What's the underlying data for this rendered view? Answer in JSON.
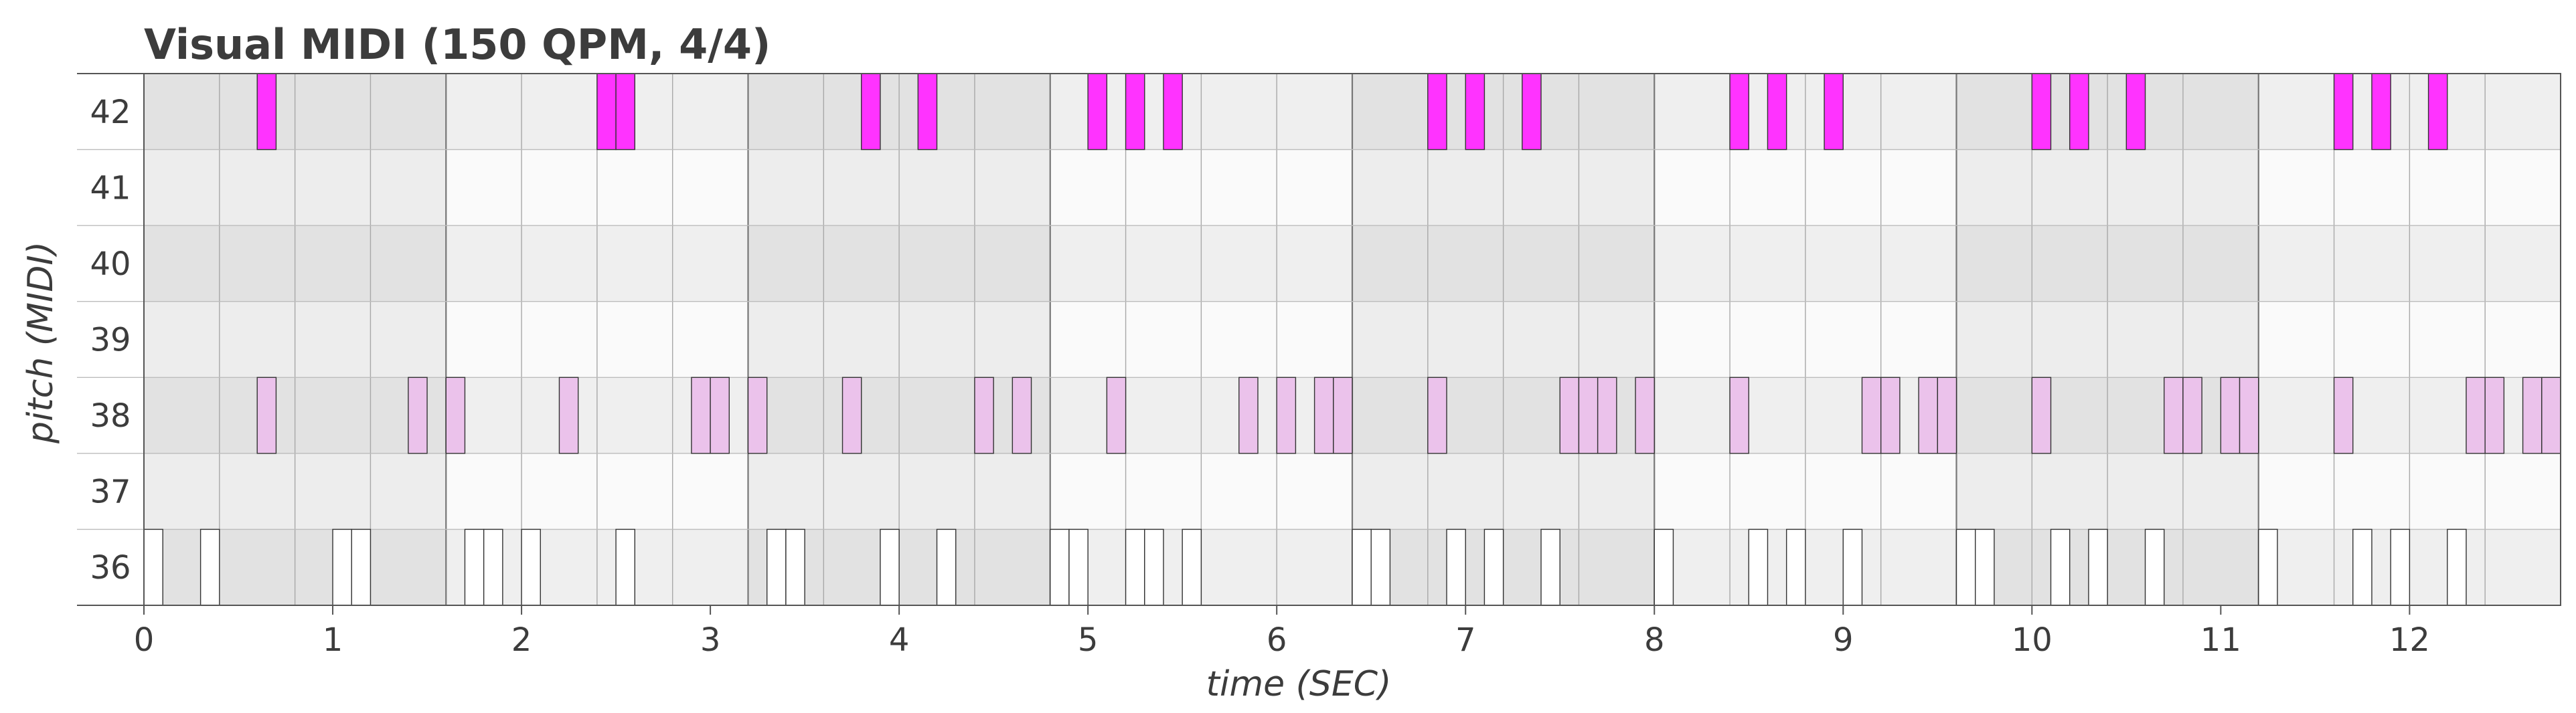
{
  "chart_data": {
    "type": "piano-roll",
    "title": "Visual MIDI (150 QPM, 4/4)",
    "xlabel": "time (SEC)",
    "ylabel": "pitch (MIDI)",
    "xlim": [
      0,
      12.8
    ],
    "ylim": [
      36,
      42
    ],
    "x_ticks": [
      "0",
      "1",
      "2",
      "3",
      "4",
      "5",
      "6",
      "7",
      "8",
      "9",
      "10",
      "11",
      "12"
    ],
    "y_ticks": [
      "42",
      "41",
      "40",
      "39",
      "38",
      "37",
      "36"
    ],
    "beat_seconds": 0.4,
    "bar_seconds": 1.6,
    "note_duration": 0.1,
    "colors": {
      "pitch_42": "#ff33ff",
      "pitch_38": "#ebc2eb",
      "pitch_36": "#ffffff",
      "note_border": "#333333",
      "background_light": "#fafafa",
      "background_dark_bar": "#e2e2e2",
      "background_mid_bar": "#ececec"
    },
    "notes": {
      "pitch_42": [
        0.6,
        2.4,
        2.5,
        3.8,
        4.1,
        5.0,
        5.2,
        5.4,
        6.8,
        7.0,
        7.3,
        8.4,
        8.6,
        8.9,
        10.0,
        10.2,
        10.5,
        11.6,
        11.8,
        12.1
      ],
      "pitch_38": [
        0.6,
        1.4,
        1.6,
        2.2,
        2.9,
        3.0,
        3.2,
        3.7,
        4.4,
        4.6,
        5.1,
        5.8,
        6.0,
        6.2,
        6.3,
        6.8,
        7.5,
        7.6,
        7.7,
        7.9,
        8.4,
        9.1,
        9.2,
        9.4,
        9.5,
        10.0,
        10.7,
        10.8,
        11.0,
        11.1,
        11.6,
        12.3,
        12.4,
        12.6,
        12.7
      ],
      "pitch_36": [
        0.0,
        0.3,
        1.0,
        1.1,
        1.7,
        1.8,
        2.0,
        2.5,
        3.3,
        3.4,
        3.9,
        4.2,
        4.8,
        4.9,
        5.2,
        5.3,
        5.5,
        6.4,
        6.5,
        6.9,
        7.1,
        7.4,
        8.0,
        8.5,
        8.7,
        9.0,
        9.6,
        9.7,
        10.1,
        10.3,
        10.6,
        11.2,
        11.7,
        11.9,
        12.2
      ]
    }
  }
}
